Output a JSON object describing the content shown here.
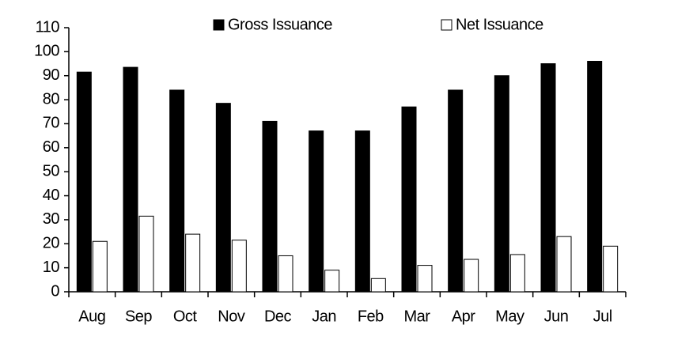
{
  "chart_data": {
    "type": "bar",
    "categories": [
      "Aug",
      "Sep",
      "Oct",
      "Nov",
      "Dec",
      "Jan",
      "Feb",
      "Mar",
      "Apr",
      "May",
      "Jun",
      "Jul"
    ],
    "series": [
      {
        "name": "Gross Issuance",
        "color": "#000000",
        "values": [
          91.5,
          93.5,
          84,
          78.5,
          71,
          67,
          67,
          77,
          84,
          90,
          95,
          96
        ]
      },
      {
        "name": "Net Issuance",
        "color": "#ffffff",
        "values": [
          21,
          31.5,
          24,
          21.5,
          15,
          9,
          5.5,
          11,
          13.5,
          15.5,
          23,
          19
        ]
      }
    ],
    "ylim": [
      0,
      110
    ],
    "yticks": [
      0,
      10,
      20,
      30,
      40,
      50,
      60,
      70,
      80,
      90,
      100,
      110
    ],
    "legend": "top"
  }
}
